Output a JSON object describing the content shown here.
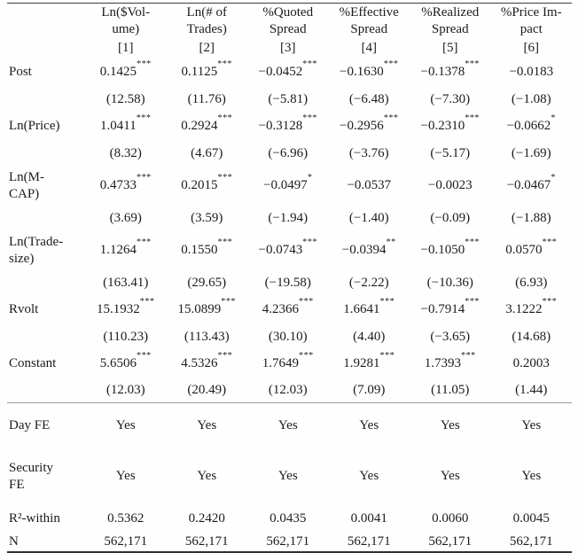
{
  "table": {
    "columns": [
      {
        "label": "Ln($Vol-\nume)",
        "number": "[1]"
      },
      {
        "label": "Ln(# of\nTrades)",
        "number": "[2]"
      },
      {
        "label": "%Quoted\nSpread",
        "number": "[3]"
      },
      {
        "label": "%Effective\nSpread",
        "number": "[4]"
      },
      {
        "label": "%Realized\nSpread",
        "number": "[5]"
      },
      {
        "label": "%Price Im-\npact",
        "number": "[6]"
      }
    ],
    "coefficient_rows": [
      {
        "label": "Post",
        "coefs": [
          "0.1425***",
          "0.1125***",
          "−0.0452***",
          "−0.1630***",
          "−0.1378***",
          "−0.0183"
        ],
        "tstats": [
          "(12.58)",
          "(11.76)",
          "(−5.81)",
          "(−6.48)",
          "(−7.30)",
          "(−1.08)"
        ]
      },
      {
        "label": "Ln(Price)",
        "coefs": [
          "1.0411***",
          "0.2924***",
          "−0.3128***",
          "−0.2956***",
          "−0.2310***",
          "−0.0662*"
        ],
        "tstats": [
          "(8.32)",
          "(4.67)",
          "(−6.96)",
          "(−3.76)",
          "(−5.17)",
          "(−1.69)"
        ]
      },
      {
        "label": "Ln(M-\nCAP)",
        "coefs": [
          "0.4733***",
          "0.2015***",
          "−0.0497*",
          "−0.0537",
          "−0.0023",
          "−0.0467*"
        ],
        "tstats": [
          "(3.69)",
          "(3.59)",
          "(−1.94)",
          "(−1.40)",
          "(−0.09)",
          "(−1.88)"
        ]
      },
      {
        "label": "Ln(Trade-\nsize)",
        "coefs": [
          "1.1264***",
          "0.1550***",
          "−0.0743***",
          "−0.0394**",
          "−0.1050***",
          "0.0570***"
        ],
        "tstats": [
          "(163.41)",
          "(29.65)",
          "(−19.58)",
          "(−2.22)",
          "(−10.36)",
          "(6.93)"
        ]
      },
      {
        "label": "Rvolt",
        "coefs": [
          "15.1932***",
          "15.0899***",
          "4.2366***",
          "1.6641***",
          "−0.7914***",
          "3.1222***"
        ],
        "tstats": [
          "(110.23)",
          "(113.43)",
          "(30.10)",
          "(4.40)",
          "(−3.65)",
          "(14.68)"
        ]
      },
      {
        "label": "Constant",
        "coefs": [
          "5.6506***",
          "4.5326***",
          "1.7649***",
          "1.9281***",
          "1.7393***",
          "0.2003"
        ],
        "tstats": [
          "(12.03)",
          "(20.49)",
          "(12.03)",
          "(7.09)",
          "(11.05)",
          "(1.44)"
        ]
      }
    ],
    "fe_rows": [
      {
        "label": "Day FE",
        "values": [
          "Yes",
          "Yes",
          "Yes",
          "Yes",
          "Yes",
          "Yes"
        ]
      },
      {
        "label": "Security\nFE",
        "values": [
          "Yes",
          "Yes",
          "Yes",
          "Yes",
          "Yes",
          "Yes"
        ]
      }
    ],
    "stat_rows": [
      {
        "label": "R²-within",
        "values": [
          "0.5362",
          "0.2420",
          "0.0435",
          "0.0041",
          "0.0060",
          "0.0045"
        ]
      },
      {
        "label": "N",
        "values": [
          "562,171",
          "562,171",
          "562,171",
          "562,171",
          "562,171",
          "562,171"
        ]
      }
    ]
  }
}
